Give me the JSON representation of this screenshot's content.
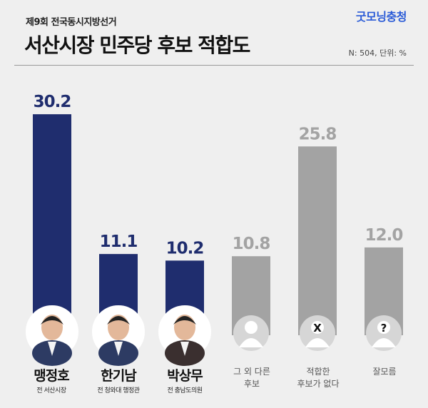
{
  "header": {
    "subtitle": "제9회 전국동시지방선거",
    "title": "서산시장 민주당 후보 적합도",
    "brand": "굿모닝충청",
    "note": "N: 504, 단위: %"
  },
  "colors": {
    "candidate_bar": "#1f2d6e",
    "other_bar": "#a3a3a3",
    "background": "#efefef"
  },
  "candidates": [
    {
      "name": "맹정호",
      "desc": "전 서산시장",
      "avatar": "person-photo"
    },
    {
      "name": "한기남",
      "desc": "전 청와대 행정관",
      "avatar": "person-photo"
    },
    {
      "name": "박상무",
      "desc": "전 충남도의원",
      "avatar": "person-photo"
    }
  ],
  "options": [
    {
      "line1": "그 외 다른",
      "line2": "후보",
      "icon": "person-silhouette-icon"
    },
    {
      "line1": "적합한",
      "line2": "후보가 없다",
      "icon": "x-mark-icon",
      "glyph": "X"
    },
    {
      "line1": "잘모름",
      "line2": "",
      "icon": "question-mark-icon",
      "glyph": "?"
    }
  ],
  "chart_data": {
    "type": "bar",
    "categories": [
      "맹정호",
      "한기남",
      "박상무",
      "그 외 다른 후보",
      "적합한 후보가 없다",
      "잘모름"
    ],
    "values": [
      30.2,
      11.1,
      10.2,
      10.8,
      25.8,
      12.0
    ],
    "value_labels": [
      "30.2",
      "11.1",
      "10.2",
      "10.8",
      "25.8",
      "12.0"
    ],
    "bar_colors": [
      "#1f2d6e",
      "#1f2d6e",
      "#1f2d6e",
      "#a3a3a3",
      "#a3a3a3",
      "#a3a3a3"
    ],
    "title": "서산시장 민주당 후보 적합도",
    "xlabel": "",
    "ylabel": "",
    "unit": "%"
  }
}
